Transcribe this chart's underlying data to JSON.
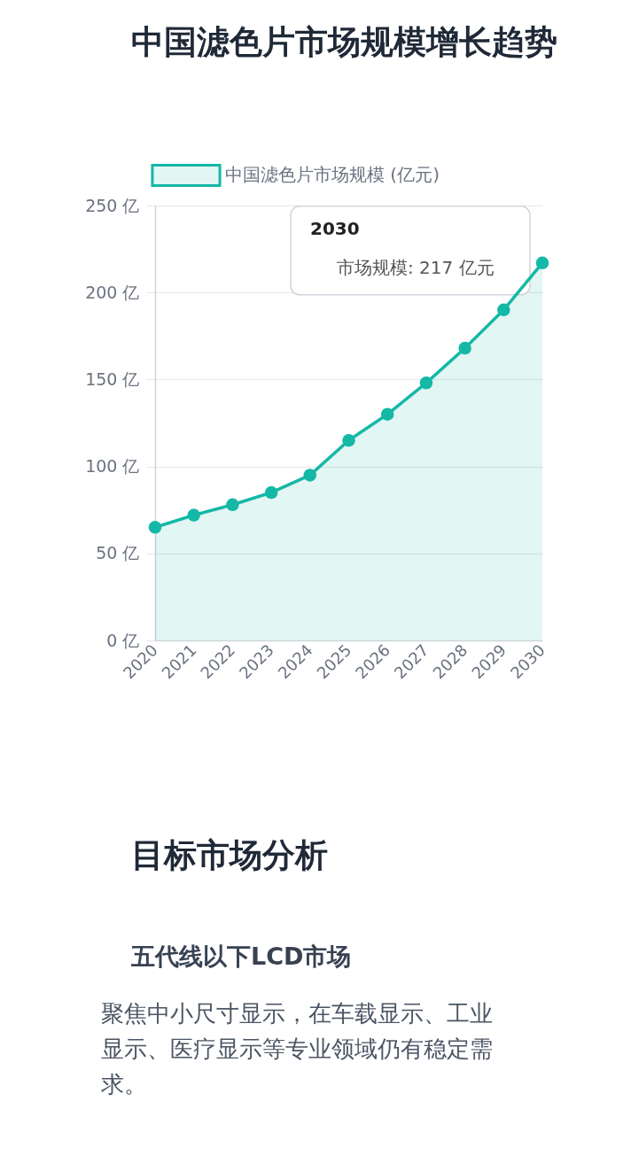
{
  "chart_data": [
    {
      "type": "area",
      "title": "中国滤色片市场规模增长趋势",
      "categories": [
        "2020",
        "2021",
        "2022",
        "2023",
        "2024",
        "2025",
        "2026",
        "2027",
        "2028",
        "2029",
        "2030"
      ],
      "series": [
        {
          "name": "中国滤色片市场规模 (亿元)",
          "color": "#14b8a6",
          "values": [
            65,
            72,
            78,
            85,
            95,
            115,
            130,
            148,
            168,
            190,
            217
          ]
        }
      ],
      "ylim": [
        0,
        250
      ],
      "yticks": [
        {
          "value": 0,
          "label": "0 亿"
        },
        {
          "value": 50,
          "label": "50 亿"
        },
        {
          "value": 100,
          "label": "100 亿"
        },
        {
          "value": 150,
          "label": "150 亿"
        },
        {
          "value": 200,
          "label": "200 亿"
        },
        {
          "value": 250,
          "label": "250 亿"
        }
      ],
      "grid": "y",
      "legend": "top",
      "marker": "circle",
      "line_style": "solid",
      "annotations": [
        {
          "text": "市场规模: 217 亿元",
          "x": "2030",
          "y": 217
        }
      ]
    },
    {
      "type": "other",
      "title": "目标市场分析",
      "subtitle": "五代线以下LCD市场",
      "annotations": [
        "聚焦中小尺寸显示，在车载显示、工业显示、医疗显示等专业领域仍有稳定需求。"
      ]
    }
  ]
}
